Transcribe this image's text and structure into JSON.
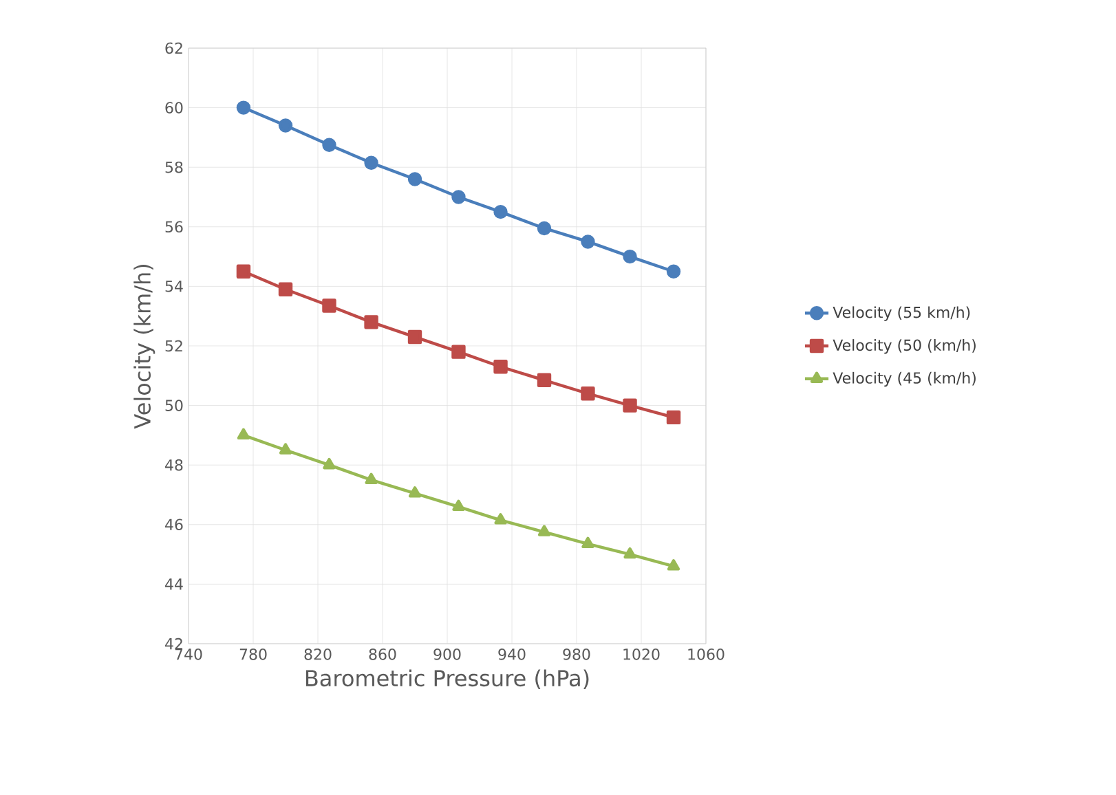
{
  "chart_data": {
    "type": "line",
    "xlabel": "Barometric Pressure (hPa)",
    "ylabel": "Velocity (km/h)",
    "x": [
      774,
      800,
      827,
      853,
      880,
      907,
      933,
      960,
      987,
      1013,
      1040
    ],
    "series": [
      {
        "name": "Velocity (55 km/h)",
        "color": "#4a7ebb",
        "marker": "circle",
        "values": [
          60.0,
          59.4,
          58.75,
          58.15,
          57.6,
          57.0,
          56.5,
          55.95,
          55.5,
          55.0,
          54.5
        ]
      },
      {
        "name": "Velocity (50 (km/h)",
        "color": "#be4b48",
        "marker": "square",
        "values": [
          54.5,
          53.9,
          53.35,
          52.8,
          52.3,
          51.8,
          51.3,
          50.85,
          50.4,
          50.0,
          49.6
        ]
      },
      {
        "name": "Velocity (45 (km/h)",
        "color": "#98b954",
        "marker": "triangle",
        "values": [
          49.0,
          48.5,
          48.0,
          47.5,
          47.05,
          46.6,
          46.15,
          45.75,
          45.35,
          45.0,
          44.6
        ]
      }
    ],
    "xlim": [
      740,
      1060
    ],
    "xticks": [
      740,
      780,
      820,
      860,
      900,
      940,
      980,
      1020,
      1060
    ],
    "ylim": [
      42,
      62
    ],
    "yticks": [
      42,
      44,
      46,
      48,
      50,
      52,
      54,
      56,
      58,
      60,
      62
    ],
    "grid": true,
    "legend": "right",
    "line_style": "solid"
  }
}
